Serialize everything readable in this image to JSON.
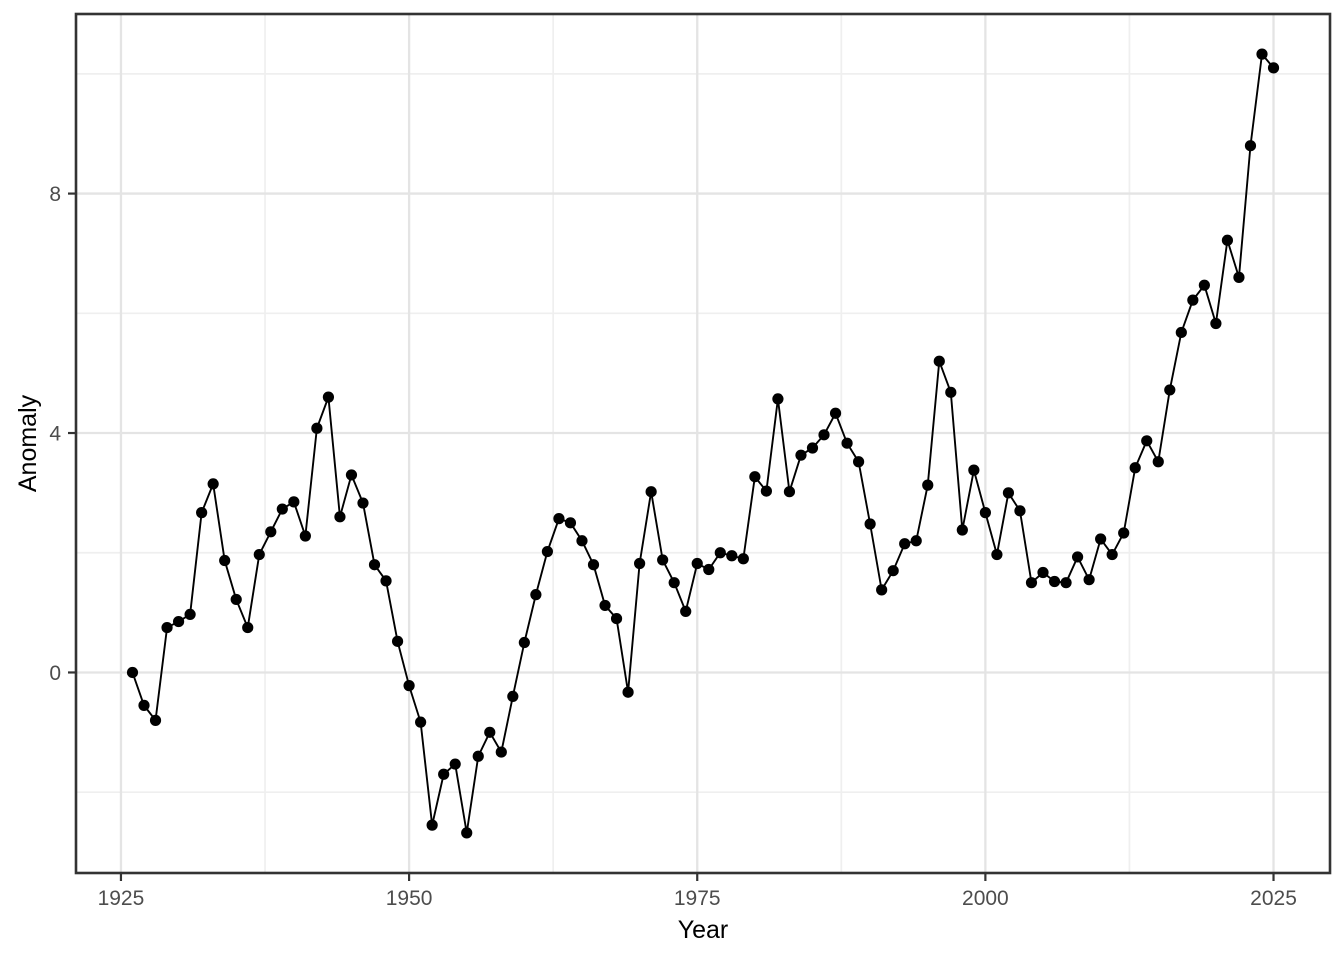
{
  "chart_data": {
    "type": "line",
    "title": "",
    "xlabel": "Year",
    "ylabel": "Anomaly",
    "legend_position": "none",
    "grid": true,
    "marker": "filled-circle",
    "xlim": [
      1921.1,
      2029.9
    ],
    "ylim": [
      -3.35,
      11.0
    ],
    "x_ticks": {
      "values": [
        1925,
        1950,
        1975,
        2000,
        2025
      ],
      "labels": [
        "1925",
        "1950",
        "1975",
        "2000",
        "2025"
      ]
    },
    "y_ticks": {
      "values": [
        0,
        4,
        8
      ],
      "labels": [
        "0",
        "4",
        "8"
      ]
    },
    "x_minor_ticks": [
      1937.5,
      1962.5,
      1987.5,
      2012.5
    ],
    "y_minor_ticks": [
      -2,
      2,
      6,
      10
    ],
    "x": [
      1926,
      1927,
      1928,
      1929,
      1930,
      1931,
      1932,
      1933,
      1934,
      1935,
      1936,
      1937,
      1938,
      1939,
      1940,
      1941,
      1942,
      1943,
      1944,
      1945,
      1946,
      1947,
      1948,
      1949,
      1950,
      1951,
      1952,
      1953,
      1954,
      1955,
      1956,
      1957,
      1958,
      1959,
      1960,
      1961,
      1962,
      1963,
      1964,
      1965,
      1966,
      1967,
      1968,
      1969,
      1970,
      1971,
      1972,
      1973,
      1974,
      1975,
      1976,
      1977,
      1978,
      1979,
      1980,
      1981,
      1982,
      1983,
      1984,
      1985,
      1986,
      1987,
      1988,
      1989,
      1990,
      1991,
      1992,
      1993,
      1994,
      1995,
      1996,
      1997,
      1998,
      1999,
      2000,
      2001,
      2002,
      2003,
      2004,
      2005,
      2006,
      2007,
      2008,
      2009,
      2010,
      2011,
      2012,
      2013,
      2014,
      2015,
      2016,
      2017,
      2018,
      2019,
      2020,
      2021,
      2022,
      2023,
      2024,
      2025
    ],
    "series": [
      {
        "name": "Anomaly",
        "values": [
          0,
          -0.55,
          -0.8,
          0.75,
          0.85,
          0.97,
          2.67,
          3.15,
          1.87,
          1.22,
          0.75,
          1.97,
          2.35,
          2.73,
          2.85,
          2.28,
          4.08,
          4.6,
          2.6,
          3.3,
          2.83,
          1.8,
          1.53,
          0.52,
          -0.22,
          -0.83,
          -2.55,
          -1.7,
          -1.53,
          -2.68,
          -1.4,
          -1.0,
          -1.33,
          -0.4,
          0.5,
          1.3,
          2.02,
          2.57,
          2.5,
          2.2,
          1.8,
          1.12,
          0.9,
          -0.33,
          1.82,
          3.02,
          1.88,
          1.5,
          1.02,
          1.82,
          1.72,
          2.0,
          1.95,
          1.9,
          3.27,
          3.03,
          4.57,
          3.02,
          3.63,
          3.75,
          3.97,
          4.33,
          3.83,
          3.52,
          2.48,
          1.38,
          1.7,
          2.15,
          2.2,
          3.13,
          5.2,
          4.68,
          2.38,
          3.38,
          2.67,
          1.97,
          3.0,
          2.7,
          1.5,
          1.67,
          1.52,
          1.5,
          1.93,
          1.55,
          2.23,
          1.97,
          2.33,
          3.42,
          3.87,
          3.52,
          4.72,
          5.68,
          6.22,
          6.47,
          5.83,
          7.22,
          6.6,
          8.8,
          10.33,
          10.1
        ]
      }
    ]
  },
  "colors": {
    "background": "#FFFFFF",
    "panel_background": "#FFFFFF",
    "panel_border": "#333333",
    "grid_major": "#E4E4E4",
    "grid_minor": "#EFEFEF",
    "tick_mark": "#333333",
    "axis_text": "#4D4D4D",
    "axis_title": "#000000",
    "line": "#000000",
    "point": "#000000"
  }
}
